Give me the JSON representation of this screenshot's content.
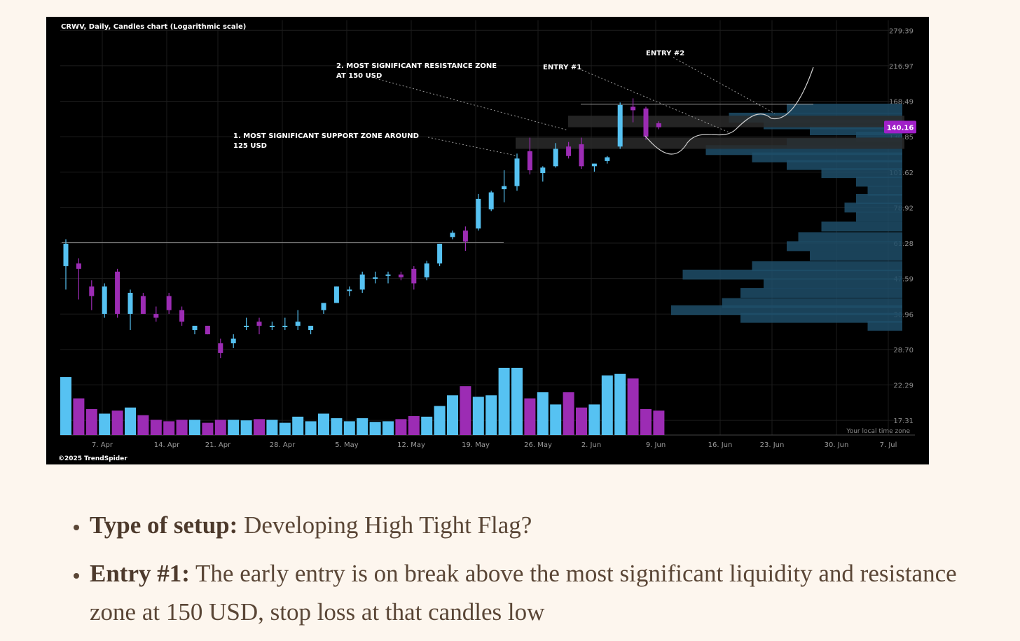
{
  "chart_data": {
    "type": "candlestick",
    "title": "CRWV, Daily, Candles chart (Logarithmic scale)",
    "watermark": "©2025 TrendSpider",
    "timezone_note": "Your local time zone",
    "scale": "log",
    "ylim": [
      15.6,
      300
    ],
    "yticks": [
      279.39,
      216.97,
      168.49,
      130.85,
      101.62,
      78.92,
      61.28,
      47.59,
      36.96,
      28.7,
      22.29,
      17.31
    ],
    "xticks": [
      "7. Apr",
      "14. Apr",
      "21. Apr",
      "28. Apr",
      "5. May",
      "12. May",
      "19. May",
      "26. May",
      "2. Jun",
      "9. Jun",
      "16. Jun",
      "23. Jun",
      "30. Jun",
      "7. Jul"
    ],
    "last_price_label": "140.16",
    "colors": {
      "up": "#56c2f2",
      "down": "#9c2cb4",
      "volume_profile": "#1f4d68",
      "price_badge": "#a020c8"
    },
    "candles": [
      {
        "date": "2025-03-28",
        "o": 52,
        "h": 63,
        "l": 44,
        "c": 61
      },
      {
        "date": "2025-03-31",
        "o": 53,
        "h": 55,
        "l": 41,
        "c": 51
      },
      {
        "date": "2025-04-01",
        "o": 45,
        "h": 47,
        "l": 38,
        "c": 42
      },
      {
        "date": "2025-04-02",
        "o": 37,
        "h": 46,
        "l": 36,
        "c": 45
      },
      {
        "date": "2025-04-03",
        "o": 50,
        "h": 51,
        "l": 36,
        "c": 37
      },
      {
        "date": "2025-04-04",
        "o": 37,
        "h": 44,
        "l": 33,
        "c": 43
      },
      {
        "date": "2025-04-07",
        "o": 42,
        "h": 43,
        "l": 37,
        "c": 37
      },
      {
        "date": "2025-04-08",
        "o": 37,
        "h": 39,
        "l": 35,
        "c": 36
      },
      {
        "date": "2025-04-09",
        "o": 42,
        "h": 43,
        "l": 37,
        "c": 38
      },
      {
        "date": "2025-04-10",
        "o": 38,
        "h": 39,
        "l": 34,
        "c": 35
      },
      {
        "date": "2025-04-11",
        "o": 33,
        "h": 34,
        "l": 32,
        "c": 34
      },
      {
        "date": "2025-04-14",
        "o": 34,
        "h": 34,
        "l": 32,
        "c": 32
      },
      {
        "date": "2025-04-15",
        "o": 30,
        "h": 31,
        "l": 27,
        "c": 28
      },
      {
        "date": "2025-04-16",
        "o": 30,
        "h": 32,
        "l": 29,
        "c": 31
      },
      {
        "date": "2025-04-17",
        "o": 34,
        "h": 36,
        "l": 33,
        "c": 34
      },
      {
        "date": "2025-04-21",
        "o": 35,
        "h": 36,
        "l": 32,
        "c": 34
      },
      {
        "date": "2025-04-22",
        "o": 34,
        "h": 35,
        "l": 33,
        "c": 34
      },
      {
        "date": "2025-04-23",
        "o": 34,
        "h": 36,
        "l": 33,
        "c": 34
      },
      {
        "date": "2025-04-24",
        "o": 34,
        "h": 38,
        "l": 33,
        "c": 35
      },
      {
        "date": "2025-04-25",
        "o": 33,
        "h": 34,
        "l": 32,
        "c": 34
      },
      {
        "date": "2025-04-28",
        "o": 38,
        "h": 40,
        "l": 37,
        "c": 40
      },
      {
        "date": "2025-04-29",
        "o": 40,
        "h": 45,
        "l": 40,
        "c": 45
      },
      {
        "date": "2025-04-30",
        "o": 44,
        "h": 45,
        "l": 42,
        "c": 44
      },
      {
        "date": "2025-05-01",
        "o": 44,
        "h": 50,
        "l": 43,
        "c": 49
      },
      {
        "date": "2025-05-02",
        "o": 48,
        "h": 50,
        "l": 46,
        "c": 48
      },
      {
        "date": "2025-05-05",
        "o": 49,
        "h": 50,
        "l": 46,
        "c": 49
      },
      {
        "date": "2025-05-06",
        "o": 49,
        "h": 50,
        "l": 47,
        "c": 48
      },
      {
        "date": "2025-05-07",
        "o": 51,
        "h": 52,
        "l": 44,
        "c": 46
      },
      {
        "date": "2025-05-08",
        "o": 48,
        "h": 54,
        "l": 47,
        "c": 53
      },
      {
        "date": "2025-05-09",
        "o": 53,
        "h": 61,
        "l": 52,
        "c": 61
      },
      {
        "date": "2025-05-12",
        "o": 64,
        "h": 67,
        "l": 63,
        "c": 66
      },
      {
        "date": "2025-05-13",
        "o": 67,
        "h": 69,
        "l": 58,
        "c": 62
      },
      {
        "date": "2025-05-14",
        "o": 68,
        "h": 87,
        "l": 67,
        "c": 84
      },
      {
        "date": "2025-05-15",
        "o": 78,
        "h": 89,
        "l": 77,
        "c": 88
      },
      {
        "date": "2025-05-16",
        "o": 90,
        "h": 103,
        "l": 82,
        "c": 92
      },
      {
        "date": "2025-05-19",
        "o": 92,
        "h": 116,
        "l": 89,
        "c": 112
      },
      {
        "date": "2025-05-20",
        "o": 118,
        "h": 130,
        "l": 100,
        "c": 103
      },
      {
        "date": "2025-05-21",
        "o": 101,
        "h": 106,
        "l": 95,
        "c": 105
      },
      {
        "date": "2025-05-22",
        "o": 106,
        "h": 125,
        "l": 105,
        "c": 120
      },
      {
        "date": "2025-05-23",
        "o": 122,
        "h": 126,
        "l": 112,
        "c": 114
      },
      {
        "date": "2025-05-27",
        "o": 124,
        "h": 130,
        "l": 104,
        "c": 106
      },
      {
        "date": "2025-05-28",
        "o": 106,
        "h": 108,
        "l": 102,
        "c": 108
      },
      {
        "date": "2025-05-29",
        "o": 110,
        "h": 114,
        "l": 108,
        "c": 113
      },
      {
        "date": "2025-05-30",
        "o": 122,
        "h": 167,
        "l": 120,
        "c": 164
      },
      {
        "date": "2025-06-02",
        "o": 162,
        "h": 172,
        "l": 145,
        "c": 158
      },
      {
        "date": "2025-06-03",
        "o": 160,
        "h": 162,
        "l": 128,
        "c": 131
      },
      {
        "date": "2025-06-04",
        "o": 144,
        "h": 146,
        "l": 138,
        "c": 140
      }
    ],
    "volume": [
      19,
      12,
      8.5,
      7,
      8,
      9,
      6.5,
      5,
      4.5,
      5,
      5,
      4,
      5,
      5,
      4.8,
      5.2,
      5,
      4,
      6,
      4.5,
      7,
      5.5,
      4.5,
      5.5,
      4.3,
      4.5,
      5.2,
      6.2,
      6,
      9.5,
      13,
      16,
      12.5,
      13,
      22,
      22,
      12,
      14,
      10,
      14,
      9,
      10,
      19.5,
      20,
      18.5,
      8.5,
      8
    ],
    "volume_profile": [
      {
        "price": 160,
        "length": 0.5
      },
      {
        "price": 150,
        "length": 0.75
      },
      {
        "price": 143,
        "length": 0.6
      },
      {
        "price": 137,
        "length": 0.4
      },
      {
        "price": 131,
        "length": 0.2
      },
      {
        "price": 125,
        "length": 0.5
      },
      {
        "price": 119,
        "length": 0.85
      },
      {
        "price": 113,
        "length": 0.65
      },
      {
        "price": 107,
        "length": 0.5
      },
      {
        "price": 101,
        "length": 0.35
      },
      {
        "price": 95,
        "length": 0.2
      },
      {
        "price": 89,
        "length": 0.15
      },
      {
        "price": 84,
        "length": 0.2
      },
      {
        "price": 79,
        "length": 0.25
      },
      {
        "price": 74,
        "length": 0.2
      },
      {
        "price": 69,
        "length": 0.35
      },
      {
        "price": 64,
        "length": 0.45
      },
      {
        "price": 60,
        "length": 0.5
      },
      {
        "price": 56,
        "length": 0.4
      },
      {
        "price": 52,
        "length": 0.65
      },
      {
        "price": 49,
        "length": 0.95
      },
      {
        "price": 46,
        "length": 0.6
      },
      {
        "price": 43,
        "length": 0.7
      },
      {
        "price": 40,
        "length": 0.78
      },
      {
        "price": 38,
        "length": 1.0
      },
      {
        "price": 36,
        "length": 0.7
      },
      {
        "price": 34,
        "length": 0.15
      }
    ],
    "levels": {
      "support_zone": [
        120,
        130
      ],
      "resistance_zone": [
        140,
        152
      ],
      "resistance_line": 165,
      "breakout_line": 61.5
    },
    "annotations": [
      {
        "text": "1. MOST SIGNIFICANT SUPPORT ZONE AROUND",
        "text2": "125 USD"
      },
      {
        "text": "2. MOST SIGNIFICANT RESISTANCE ZONE",
        "text2": "AT 150 USD"
      },
      {
        "text": "ENTRY #1",
        "text2": ""
      },
      {
        "text": "ENTRY #2",
        "text2": ""
      }
    ]
  },
  "article": {
    "items": [
      {
        "label": "Type of setup:",
        "text": " Developing High Tight Flag?"
      },
      {
        "label": "Entry #1:",
        "text": " The early entry is on break above the most significant liquidity and resistance zone at 150 USD, stop loss at that candles low"
      }
    ]
  }
}
